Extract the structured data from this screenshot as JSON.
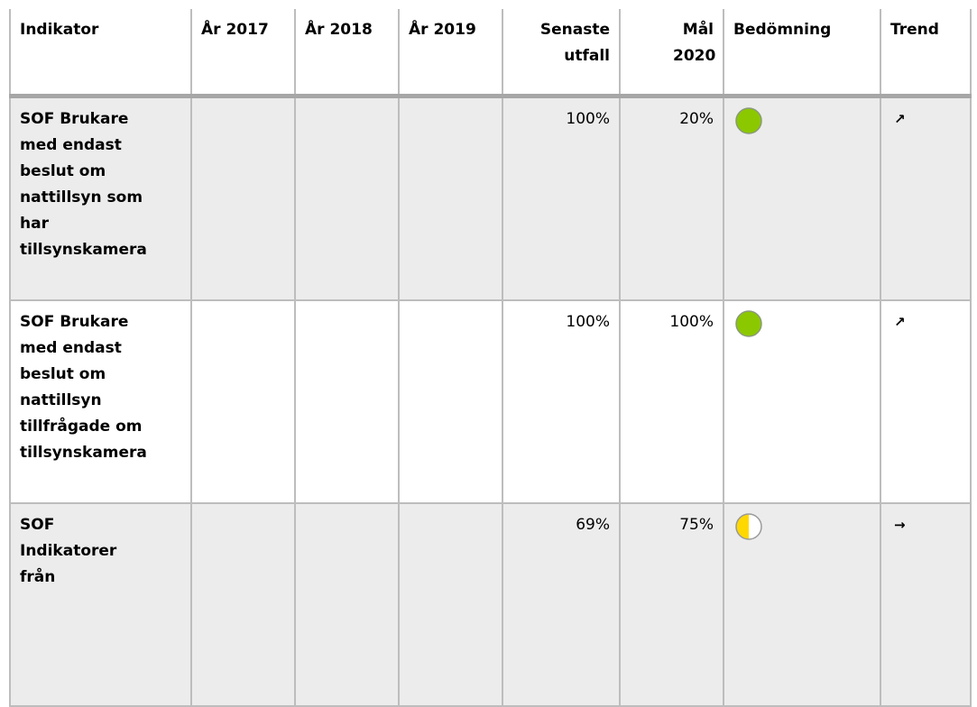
{
  "table": {
    "headers": [
      "Indikator",
      "År 2017",
      "År 2018",
      "År 2019",
      "Senaste utfall",
      "Mål 2020",
      "Bedömning",
      "Trend"
    ],
    "rows": [
      {
        "indikator": "SOF Brukare med endast beslut om nattillsyn som har tillsynskamera",
        "senaste": "100%",
        "mal": "20%",
        "trend": "↗"
      },
      {
        "indikator": "SOF Brukare med endast beslut om nattillsyn tillfrågade om tillsynskamera",
        "senaste": "100%",
        "mal": "100%",
        "trend": "↗"
      },
      {
        "indikator": "SOF Indikatorer från",
        "senaste": "69%",
        "mal": "75%",
        "trend": "→"
      }
    ]
  }
}
